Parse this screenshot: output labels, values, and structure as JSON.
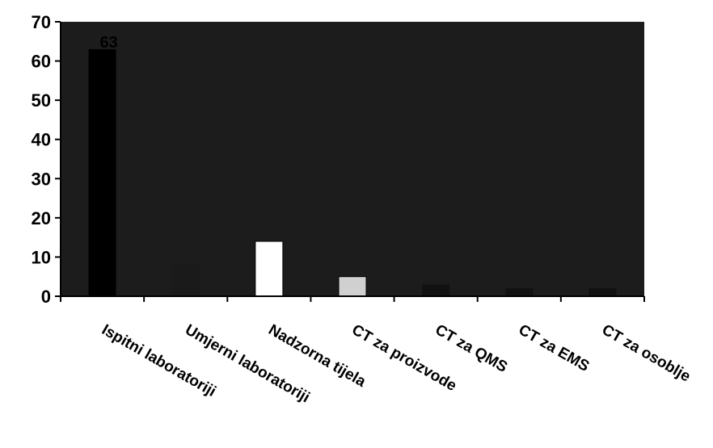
{
  "chart_data": {
    "type": "bar",
    "categories": [
      "Ispitni laboratoriji",
      "Umjerni laboratoriji",
      "Nadzorna tijela",
      "CT za proizvode",
      "CT za QMS",
      "CT za EMS",
      "CT za osoblje"
    ],
    "values": [
      63,
      8,
      14,
      5,
      3,
      2,
      2
    ],
    "data_labels": [
      "63",
      "",
      "",
      "",
      "",
      "",
      ""
    ],
    "bar_colors": [
      "#000000",
      "#1a1a1a",
      "#ffffff",
      "#d0d0d0",
      "#111111",
      "#111111",
      "#111111"
    ],
    "plot_background": "#1c1c1c",
    "ylim": [
      0,
      70
    ],
    "yticks": [
      "0",
      "10",
      "20",
      "30",
      "40",
      "50",
      "60",
      "70"
    ],
    "grid": false,
    "legend": "none"
  }
}
